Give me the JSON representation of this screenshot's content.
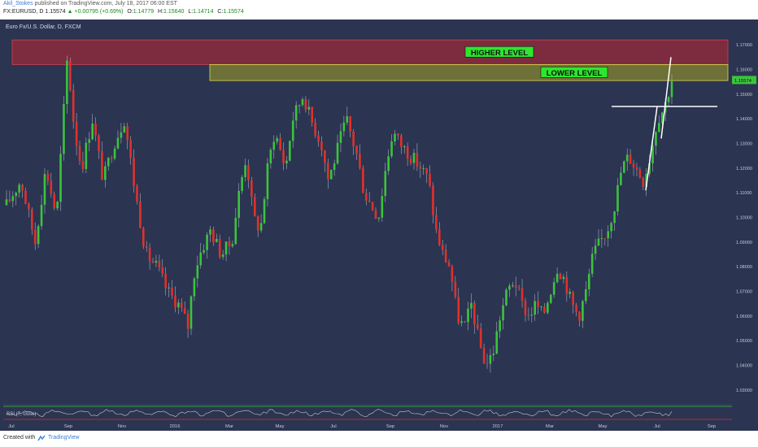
{
  "header": {
    "author": "Akil_Stokes",
    "published_text": "published on TradingView.com, July 18, 2017 06:00 EST",
    "symbol": "FX:EURUSD, D",
    "last_price": "1.15574",
    "change": "▲ +0.00795 (+0.69%)",
    "open_label": "O:",
    "open": "1.14779",
    "high_label": "H:",
    "high": "1.15640",
    "low_label": "L:",
    "low": "1.14714",
    "close_label": "C:",
    "close": "1.15574"
  },
  "chart_title": "Euro Fx/U.S. Dollar, D, FXCM",
  "footer": {
    "created_with": "Created with",
    "brand": "TradingView"
  },
  "indicator_label": "RSI (7, close)",
  "colors": {
    "background": "#2b3451",
    "up_candle": "#3bc43b",
    "down_candle": "#e0312a",
    "higher_zone": "#9a2a3a",
    "lower_zone": "#8c8c2c",
    "zone_label_bg": "#2ee62e",
    "trend_line": "#ffffff",
    "rsi_line": "#c8c8c8",
    "rsi_band": "#3bc43b"
  },
  "chart_data": {
    "type": "candlestick",
    "title": "Euro Fx/U.S. Dollar, D, FXCM",
    "ylim": [
      1.025,
      1.175
    ],
    "y_ticks": [
      "1.17000",
      "1.16000",
      "1.15000",
      "1.14000",
      "1.13000",
      "1.12000",
      "1.11000",
      "1.10000",
      "1.09000",
      "1.08000",
      "1.07000",
      "1.06000",
      "1.05000",
      "1.04000",
      "1.03000"
    ],
    "x_ticks": [
      "Jul",
      "Sep",
      "Nov",
      "2016",
      "Mar",
      "May",
      "Jul",
      "Sep",
      "Nov",
      "2017",
      "Mar",
      "May",
      "Jul",
      "Sep"
    ],
    "price_path": [
      [
        0,
        1.105
      ],
      [
        4,
        1.115
      ],
      [
        8,
        1.09
      ],
      [
        11,
        1.12
      ],
      [
        14,
        1.1
      ],
      [
        17,
        1.165
      ],
      [
        19,
        1.135
      ],
      [
        21,
        1.12
      ],
      [
        24,
        1.14
      ],
      [
        27,
        1.115
      ],
      [
        30,
        1.13
      ],
      [
        33,
        1.14
      ],
      [
        36,
        1.11
      ],
      [
        39,
        1.085
      ],
      [
        42,
        1.08
      ],
      [
        45,
        1.07
      ],
      [
        48,
        1.065
      ],
      [
        51,
        1.055
      ],
      [
        52,
        1.075
      ],
      [
        54,
        1.085
      ],
      [
        57,
        1.095
      ],
      [
        60,
        1.085
      ],
      [
        63,
        1.09
      ],
      [
        65,
        1.11
      ],
      [
        67,
        1.125
      ],
      [
        69,
        1.1
      ],
      [
        71,
        1.095
      ],
      [
        73,
        1.12
      ],
      [
        75,
        1.135
      ],
      [
        78,
        1.12
      ],
      [
        80,
        1.14
      ],
      [
        83,
        1.15
      ],
      [
        85,
        1.14
      ],
      [
        88,
        1.13
      ],
      [
        90,
        1.115
      ],
      [
        92,
        1.125
      ],
      [
        95,
        1.14
      ],
      [
        98,
        1.125
      ],
      [
        100,
        1.11
      ],
      [
        102,
        1.105
      ],
      [
        104,
        1.1
      ],
      [
        106,
        1.12
      ],
      [
        108,
        1.135
      ],
      [
        110,
        1.13
      ],
      [
        113,
        1.125
      ],
      [
        116,
        1.12
      ],
      [
        118,
        1.115
      ],
      [
        120,
        1.095
      ],
      [
        122,
        1.085
      ],
      [
        124,
        1.08
      ],
      [
        126,
        1.06
      ],
      [
        128,
        1.055
      ],
      [
        130,
        1.065
      ],
      [
        132,
        1.05
      ],
      [
        134,
        1.04
      ],
      [
        136,
        1.045
      ],
      [
        138,
        1.06
      ],
      [
        140,
        1.07
      ],
      [
        142,
        1.075
      ],
      [
        144,
        1.065
      ],
      [
        146,
        1.06
      ],
      [
        148,
        1.065
      ],
      [
        150,
        1.06
      ],
      [
        152,
        1.07
      ],
      [
        154,
        1.08
      ],
      [
        156,
        1.075
      ],
      [
        158,
        1.065
      ],
      [
        160,
        1.06
      ],
      [
        162,
        1.07
      ],
      [
        164,
        1.085
      ],
      [
        166,
        1.09
      ],
      [
        168,
        1.095
      ],
      [
        170,
        1.105
      ],
      [
        172,
        1.12
      ],
      [
        174,
        1.125
      ],
      [
        176,
        1.12
      ],
      [
        178,
        1.115
      ],
      [
        180,
        1.125
      ],
      [
        182,
        1.14
      ],
      [
        184,
        1.145
      ],
      [
        186,
        1.156
      ]
    ],
    "zones": [
      {
        "label": "HIGHER LEVEL",
        "from": 1.162,
        "to": 1.172
      },
      {
        "label": "LOWER LEVEL",
        "from": 1.1555,
        "to": 1.162
      }
    ],
    "horizontal_line": 1.145,
    "rsi": {
      "label": "RSI (7, close)"
    }
  }
}
